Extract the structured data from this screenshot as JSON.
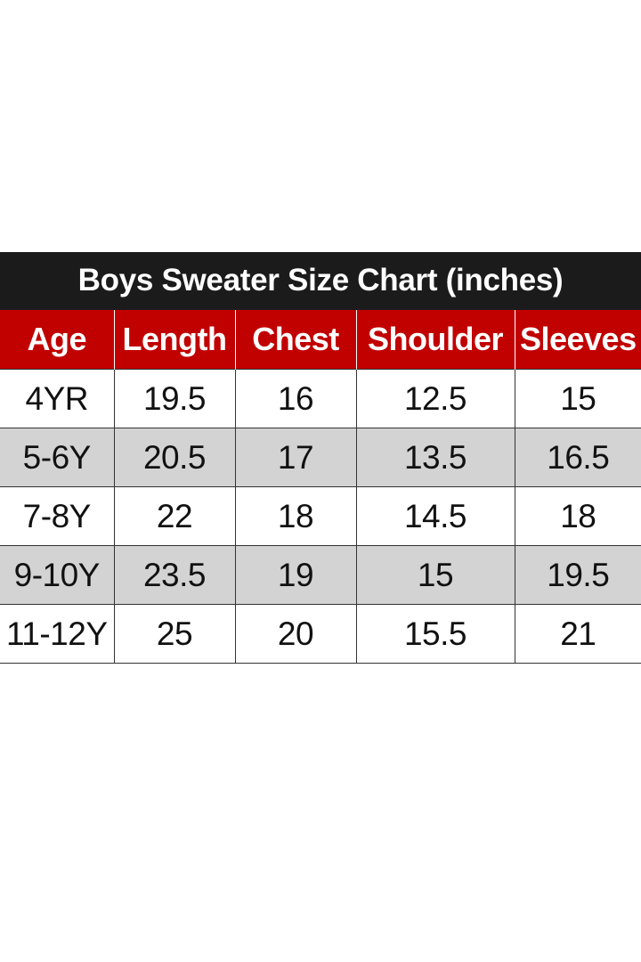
{
  "chart": {
    "title": "Boys Sweater Size Chart (inches)",
    "header_bg": "#1b1b1b",
    "column_bg": "#c10000",
    "stripe_color": "#d3d3d3",
    "columns": [
      "Age",
      "Length",
      "Chest",
      "Shoulder",
      "Sleeves"
    ],
    "rows": [
      [
        "4YR",
        "19.5",
        "16",
        "12.5",
        "15"
      ],
      [
        "5-6Y",
        "20.5",
        "17",
        "13.5",
        "16.5"
      ],
      [
        "7-8Y",
        "22",
        "18",
        "14.5",
        "18"
      ],
      [
        "9-10Y",
        "23.5",
        "19",
        "15",
        "19.5"
      ],
      [
        "11-12Y",
        "25",
        "20",
        "15.5",
        "21"
      ]
    ]
  }
}
